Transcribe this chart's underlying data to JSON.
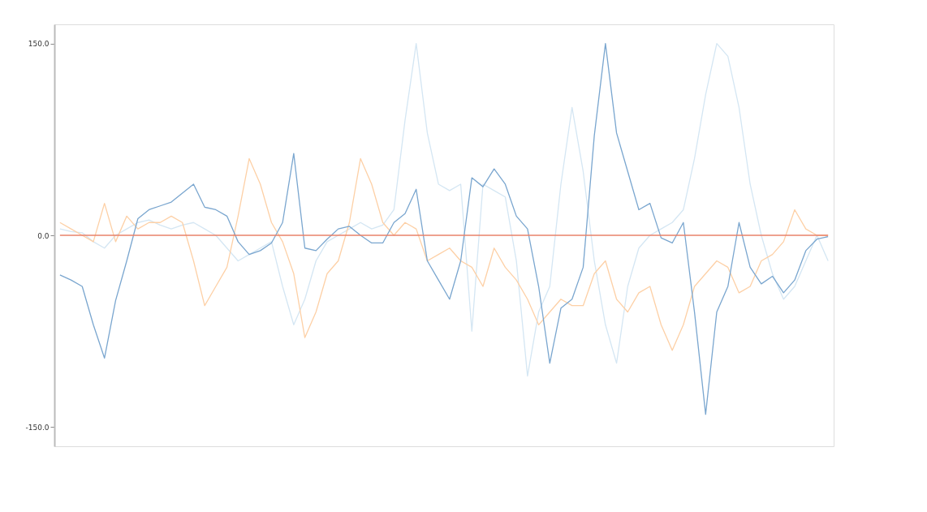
{
  "chart_data": {
    "type": "line",
    "categories": [
      null,
      null,
      null,
      null,
      null,
      null,
      null,
      null,
      null,
      null,
      null,
      null,
      null,
      null,
      null,
      null,
      null,
      null,
      null,
      null,
      null,
      null,
      null,
      null,
      null,
      null,
      null,
      null,
      null,
      null,
      null,
      null,
      null,
      null,
      null,
      null,
      null,
      null,
      null,
      null,
      null,
      null,
      null,
      null,
      null,
      null,
      null,
      null,
      null,
      null,
      null,
      null,
      null,
      null,
      null,
      null,
      null,
      null,
      null,
      null,
      null,
      null,
      null,
      null,
      null,
      null,
      null,
      null,
      null,
      null
    ],
    "series": [
      {
        "color": "#d4e6f3",
        "values": [
          5,
          3,
          2,
          -5,
          -10,
          0,
          5,
          10,
          12,
          8,
          5,
          8,
          10,
          5,
          0,
          -10,
          -20,
          -15,
          -10,
          -5,
          -40,
          -70,
          -50,
          -20,
          -5,
          0,
          5,
          10,
          5,
          8,
          20,
          90,
          150,
          80,
          40,
          35,
          40,
          -75,
          40,
          35,
          30,
          -20,
          -110,
          -60,
          -40,
          40,
          100,
          50,
          -20,
          -70,
          -100,
          -40,
          -10,
          0,
          5,
          10,
          20,
          60,
          110,
          150,
          140,
          100,
          40,
          0,
          -30,
          -50,
          -40,
          -20,
          0,
          -20
        ]
      },
      {
        "color": "#fdd0a6",
        "values": [
          10,
          5,
          0,
          -5,
          25,
          -5,
          15,
          5,
          10,
          10,
          15,
          10,
          -20,
          -55,
          -40,
          -25,
          15,
          60,
          40,
          10,
          -5,
          -30,
          -80,
          -60,
          -30,
          -20,
          10,
          60,
          40,
          10,
          0,
          10,
          5,
          -20,
          -15,
          -10,
          -20,
          -25,
          -40,
          -10,
          -25,
          -35,
          -50,
          -70,
          -60,
          -50,
          -55,
          -55,
          -30,
          -20,
          -50,
          -60,
          -45,
          -40,
          -70,
          -90,
          -70,
          -40,
          -30,
          -20,
          -25,
          -45,
          -40,
          -20,
          -15,
          -5,
          20,
          5,
          0,
          0
        ]
      },
      {
        "color": "#7aa6cf",
        "values": [
          -31,
          -35,
          -40,
          -70,
          -96,
          -51,
          -20,
          13,
          20,
          23,
          26,
          33,
          40,
          22,
          20,
          15,
          -5,
          -15,
          -12,
          -6,
          10,
          64,
          -10,
          -12,
          -3,
          5,
          7,
          0,
          -6,
          -6,
          10,
          17,
          36,
          -20,
          -35,
          -50,
          -20,
          45,
          38,
          52,
          40,
          15,
          5,
          -40,
          -100,
          -57,
          -50,
          -25,
          78,
          150,
          80,
          50,
          20,
          25,
          -2,
          -6,
          10,
          -60,
          -140,
          -60,
          -40,
          10,
          -25,
          -38,
          -32,
          -45,
          -35,
          -12,
          -3,
          -1
        ]
      },
      {
        "color": "#e8826a",
        "values": [
          0,
          0,
          0,
          0,
          0,
          0,
          0,
          0,
          0,
          0,
          0,
          0,
          0,
          0,
          0,
          0,
          0,
          0,
          0,
          0,
          0,
          0,
          0,
          0,
          0,
          0,
          0,
          0,
          0,
          0,
          0,
          0,
          0,
          0,
          0,
          0,
          0,
          0,
          0,
          0,
          0,
          0,
          0,
          0,
          0,
          0,
          0,
          0,
          0,
          0,
          0,
          0,
          0,
          0,
          0,
          0,
          0,
          0,
          0,
          0,
          0,
          0,
          0,
          0,
          0,
          0,
          0,
          0,
          0,
          0
        ]
      }
    ],
    "ylim": [
      -165,
      165
    ],
    "yticks": [
      {
        "value": -150,
        "label": "-150.0"
      },
      {
        "value": 0,
        "label": "0.0"
      },
      {
        "value": 150,
        "label": "150.0"
      }
    ],
    "tick_labels": "y",
    "grid": false,
    "legend": false,
    "line_style": "solid",
    "marker": "none"
  }
}
